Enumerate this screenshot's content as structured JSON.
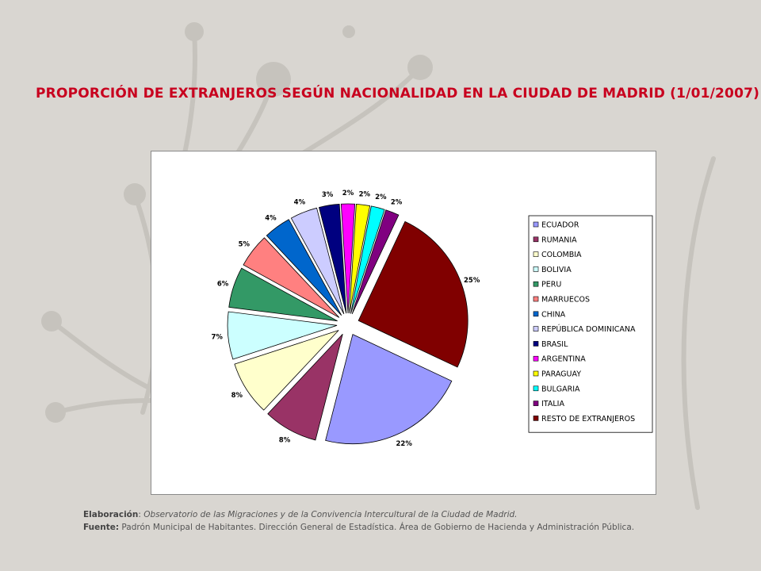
{
  "title": "PROPORCIÓN DE EXTRANJEROS SEGÚN NACIONALIDAD EN LA CIUDAD DE MADRID (1/01/2007)",
  "colors": {
    "background": "#d9d6d1",
    "decor": "#c6c3bd",
    "title": "#c8001e"
  },
  "chart_data": {
    "type": "pie",
    "title": "PROPORCIÓN DE EXTRANJEROS SEGÚN NACIONALIDAD EN LA CIUDAD DE MADRID (1/01/2007)",
    "legend_position": "right",
    "exploded": true,
    "slices": [
      {
        "name": "ECUADOR",
        "value": 22,
        "label": "22%",
        "color": "#9999ff"
      },
      {
        "name": "RUMANIA",
        "value": 8,
        "label": "8%",
        "color": "#993366"
      },
      {
        "name": "COLOMBIA",
        "value": 8,
        "label": "8%",
        "color": "#ffffcc"
      },
      {
        "name": "BOLIVIA",
        "value": 7,
        "label": "7%",
        "color": "#ccffff"
      },
      {
        "name": "PERU",
        "value": 6,
        "label": "6%",
        "color": "#339966"
      },
      {
        "name": "MARRUECOS",
        "value": 5,
        "label": "5%",
        "color": "#ff8080"
      },
      {
        "name": "CHINA",
        "value": 4,
        "label": "4%",
        "color": "#0066cc"
      },
      {
        "name": "REPÚBLICA DOMINICANA",
        "value": 4,
        "label": "4%",
        "color": "#ccccff"
      },
      {
        "name": "BRASIL",
        "value": 3,
        "label": "3%",
        "color": "#000080"
      },
      {
        "name": "ARGENTINA",
        "value": 2,
        "label": "2%",
        "color": "#ff00ff"
      },
      {
        "name": "PARAGUAY",
        "value": 2,
        "label": "2%",
        "color": "#ffff00"
      },
      {
        "name": "BULGARIA",
        "value": 2,
        "label": "2%",
        "color": "#00ffff"
      },
      {
        "name": "ITALIA",
        "value": 2,
        "label": "2%",
        "color": "#800080"
      },
      {
        "name": "RESTO DE EXTRANJEROS",
        "value": 25,
        "label": "25%",
        "color": "#800000"
      }
    ]
  },
  "footer": {
    "elaboracion_label": "Elaboración",
    "elaboracion_sep": ": ",
    "elaboracion_text": "Observatorio de las Migraciones y de la Convivencia Intercultural de la Ciudad de Madrid.",
    "fuente_label": "Fuente:",
    "fuente_text": " Padrón Municipal de Habitantes. Dirección General de Estadística. Área de Gobierno de Hacienda y Administración Pública."
  }
}
